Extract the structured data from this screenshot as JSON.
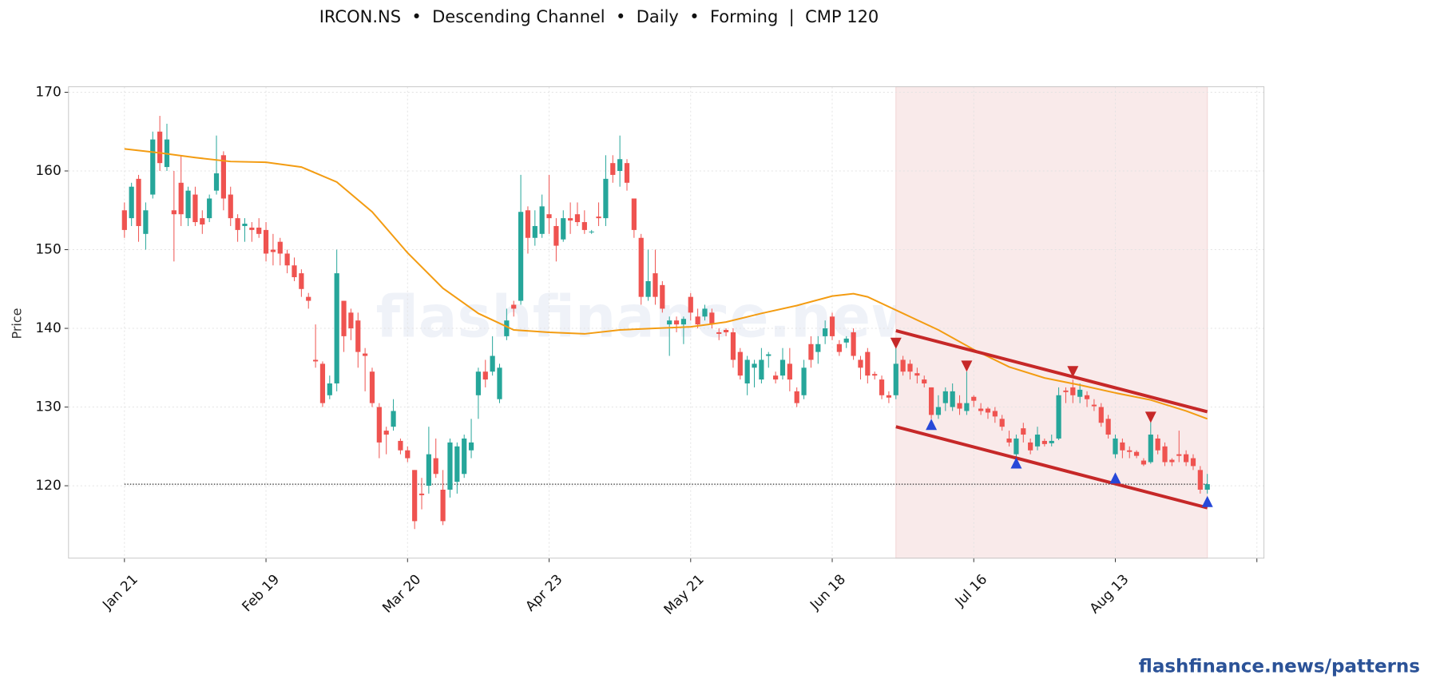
{
  "chart_data": {
    "type": "candlestick",
    "title": "IRCON.NS  •  Descending Channel  •  Daily  •  Forming  |  CMP 120",
    "ylabel": "Price",
    "watermark": "flashfinance.news",
    "footer": "flashfinance.news/patterns",
    "grid": true,
    "up_color": "#26a69a",
    "down_color": "#ef5350",
    "xlim": [
      -7.9,
      161
    ],
    "xticks": [
      {
        "value": 0,
        "label": "Jan 21"
      },
      {
        "value": 20,
        "label": "Feb 19"
      },
      {
        "value": 40,
        "label": "Mar 20"
      },
      {
        "value": 60,
        "label": "Apr 23"
      },
      {
        "value": 80,
        "label": "May 21"
      },
      {
        "value": 100,
        "label": "Jun 18"
      },
      {
        "value": 120,
        "label": "Jul 16"
      },
      {
        "value": 140,
        "label": "Aug 13"
      },
      {
        "value": 160,
        "label": null
      }
    ],
    "ylim": [
      110.8,
      170.7
    ],
    "yticks": [
      120,
      130,
      140,
      150,
      160,
      170
    ],
    "open": [
      155,
      154,
      159,
      152,
      157,
      165,
      160.5,
      155,
      158.5,
      154,
      157,
      154,
      154,
      157.5,
      162,
      157,
      154,
      153,
      152.8,
      152.8,
      152.5,
      150,
      151,
      149.5,
      148,
      147,
      144,
      136,
      135.5,
      131.5,
      133,
      143.5,
      142,
      141,
      136.8,
      134.5,
      130,
      127,
      127.5,
      125.7,
      124.5,
      122,
      119,
      120,
      123.5,
      119.5,
      119.5,
      120.5,
      121.5,
      124.5,
      131.5,
      134.5,
      134.5,
      131,
      139,
      143,
      143.5,
      155,
      151.5,
      152,
      154.5,
      153,
      151.3,
      154,
      154.5,
      153.5,
      152.3,
      154.2,
      154,
      161,
      160,
      161,
      156.5,
      151.5,
      144,
      147,
      145.5,
      140.5,
      141,
      140.5,
      144,
      141.5,
      141.5,
      142,
      139.5,
      139.8,
      139.5,
      137,
      133,
      135,
      133.5,
      136.5,
      134,
      134,
      135.5,
      132,
      131.5,
      138,
      137,
      139,
      141.5,
      138,
      138.2,
      139.5,
      136,
      137,
      134.2,
      133.5,
      131.5,
      131.5,
      136,
      135.5,
      134.3,
      133.5,
      132.5,
      129,
      130.5,
      130,
      130.5,
      129.5,
      131.3,
      129.8,
      129.8,
      129.5,
      128.5,
      126,
      124,
      127.3,
      125.5,
      125,
      125.7,
      125.4,
      126,
      132.1,
      132.5,
      131.3,
      131.5,
      130.3,
      130,
      128.5,
      124,
      125.5,
      124.5,
      124.3,
      123.2,
      123,
      126,
      125,
      123.3,
      124,
      124,
      123.5,
      122,
      119.5
    ],
    "high": [
      156,
      158.5,
      159.5,
      156,
      165,
      167,
      166,
      160,
      162,
      158,
      158,
      155,
      157,
      164.5,
      162.5,
      158,
      154.5,
      154,
      153.5,
      154,
      153.5,
      152,
      151.5,
      150,
      149,
      147.5,
      144.5,
      140.5,
      135.8,
      134,
      150,
      143.5,
      142.5,
      142,
      137.5,
      135,
      130.5,
      127.5,
      131,
      126,
      125,
      122,
      121,
      127.5,
      126,
      122,
      126,
      125.5,
      126.5,
      128.5,
      135,
      136,
      139,
      135.5,
      142.5,
      143.5,
      159.5,
      155.5,
      155,
      157,
      159.5,
      154,
      155,
      156,
      156,
      155,
      152.5,
      156,
      162,
      162,
      164.5,
      161.5,
      156.5,
      152,
      150,
      150,
      146,
      141.5,
      141.5,
      141.5,
      144.5,
      142.5,
      143,
      142.5,
      140,
      140,
      140,
      137.5,
      136.5,
      136,
      137.5,
      137,
      134.5,
      137.5,
      137.5,
      132.5,
      136,
      139,
      139,
      141,
      142,
      138.5,
      139,
      140,
      136.5,
      137.5,
      134.5,
      134,
      132,
      137.5,
      136.5,
      136,
      135,
      134,
      132.5,
      131.5,
      132.5,
      133,
      131.5,
      134.5,
      131.5,
      130.5,
      130,
      130,
      129,
      127,
      126.5,
      128,
      126,
      127.5,
      126,
      126.5,
      132.5,
      132.5,
      133.5,
      133,
      132,
      131,
      130.5,
      129,
      126.5,
      126,
      125,
      124.5,
      123.5,
      128.5,
      126.5,
      125.5,
      123.5,
      127,
      124.5,
      124,
      122.5,
      121.5
    ],
    "low": [
      151.5,
      153,
      151,
      150,
      156.5,
      160,
      160,
      148.5,
      153,
      153,
      153,
      152,
      153.5,
      157,
      155,
      153,
      151,
      151,
      151,
      151.5,
      148.5,
      148,
      148,
      147,
      146,
      144,
      142.5,
      135,
      130,
      131,
      132,
      137,
      138.5,
      135,
      132,
      130,
      123.5,
      124,
      127,
      124,
      123,
      114.5,
      117,
      119,
      121,
      115,
      118.5,
      119,
      121,
      123.5,
      128.5,
      132.5,
      134,
      130.5,
      138.5,
      141.5,
      143,
      149.5,
      150.5,
      151.5,
      152,
      148.5,
      151,
      152,
      153,
      152,
      152,
      153,
      153,
      158.5,
      158,
      157.5,
      151.5,
      143,
      143.5,
      143,
      142,
      136.5,
      139.5,
      138,
      141,
      140,
      141,
      140,
      138.5,
      139,
      135,
      133.5,
      131.5,
      132.5,
      133,
      135,
      133,
      133.5,
      132,
      130,
      131,
      135,
      135.5,
      138,
      138.5,
      136.5,
      137.5,
      136,
      133.5,
      133,
      133.5,
      131,
      130.5,
      131,
      134,
      133.5,
      133,
      132.5,
      128.5,
      128.5,
      129.5,
      129.5,
      129,
      129,
      130,
      129,
      128.5,
      128,
      127,
      125,
      123.5,
      125.5,
      124,
      124.5,
      125,
      125,
      125.8,
      130.5,
      130.5,
      130.5,
      130,
      129.5,
      127.5,
      126,
      123.5,
      123.5,
      123.5,
      123.5,
      122.5,
      122.8,
      124,
      122.5,
      122.5,
      123,
      122.5,
      122,
      119,
      119
    ],
    "close": [
      152.5,
      158,
      153,
      155,
      164,
      161,
      164,
      154.5,
      154.5,
      157.5,
      153.5,
      153.2,
      156.5,
      159.7,
      156.5,
      154,
      152.5,
      153.3,
      152.5,
      152,
      149.5,
      149.7,
      149.5,
      148,
      146.5,
      145,
      143.5,
      135.8,
      130.5,
      133,
      147,
      139,
      140,
      137,
      136.5,
      130.5,
      125.5,
      126.5,
      129.5,
      124.5,
      123.5,
      115.5,
      118.8,
      124,
      121.5,
      115.5,
      125.5,
      125,
      126,
      125.5,
      134.5,
      133.5,
      136.5,
      135,
      141,
      142.5,
      154.8,
      151.5,
      153,
      155.5,
      154,
      150.5,
      154,
      153.7,
      153.5,
      152.5,
      152.3,
      154,
      159,
      159.5,
      161.5,
      158.5,
      152.5,
      144,
      146,
      144,
      142.5,
      141,
      140.5,
      141.2,
      142,
      140.5,
      142.5,
      140.5,
      139.3,
      139.5,
      136,
      134,
      136,
      135.5,
      136,
      136.7,
      133.5,
      136,
      133.5,
      130.5,
      135,
      136,
      138,
      140,
      139,
      137,
      138.7,
      136.5,
      135,
      134,
      134,
      131.5,
      131.2,
      135.5,
      134.5,
      134.5,
      134,
      133,
      129,
      130,
      132,
      132,
      129.8,
      130.5,
      130.8,
      129.5,
      129.3,
      128.8,
      127.5,
      125.5,
      126,
      126.5,
      124.5,
      126.5,
      125.3,
      125.7,
      131.5,
      131.9,
      131.5,
      132.2,
      131,
      130.1,
      128,
      126.5,
      126,
      124.5,
      124.3,
      123.8,
      122.7,
      126.5,
      124.5,
      123,
      123,
      123.8,
      123,
      122.5,
      119.5,
      120.2
    ],
    "moving_average": {
      "color": "#f39c12",
      "x": [
        0,
        5,
        10,
        15,
        20,
        25,
        30,
        35,
        40,
        45,
        50,
        55,
        60,
        65,
        70,
        75,
        80,
        85,
        90,
        95,
        100,
        103,
        105,
        110,
        115,
        120,
        125,
        130,
        135,
        140,
        145,
        150,
        153
      ],
      "values": [
        162.8,
        162.3,
        161.7,
        161.2,
        161.1,
        160.5,
        158.6,
        154.8,
        149.6,
        145.1,
        141.9,
        139.8,
        139.5,
        139.3,
        139.8,
        140,
        140.2,
        140.8,
        141.9,
        142.9,
        144.1,
        144.4,
        144,
        141.9,
        139.8,
        137.3,
        135.1,
        133.7,
        132.8,
        131.8,
        130.9,
        129.5,
        128.5
      ]
    },
    "channel": {
      "color": "#c62828",
      "zone_color": "#f9eaea",
      "zone": [
        109,
        153
      ],
      "upper": {
        "x": [
          109,
          153
        ],
        "values": [
          139.7,
          129.4
        ]
      },
      "lower": {
        "x": [
          109,
          153
        ],
        "values": [
          127.5,
          117.2
        ]
      }
    },
    "pivot_highs": {
      "color": "#c62828",
      "x": [
        109,
        119,
        134,
        145
      ],
      "values": [
        138.1,
        135.2,
        134.5,
        128.7
      ]
    },
    "pivot_lows": {
      "color": "#2748d8",
      "x": [
        114,
        126,
        140,
        153
      ],
      "values": [
        127.8,
        122.9,
        121.0,
        118.0
      ]
    },
    "cmp_line": {
      "value": 120.2,
      "x": [
        0,
        153
      ]
    }
  }
}
